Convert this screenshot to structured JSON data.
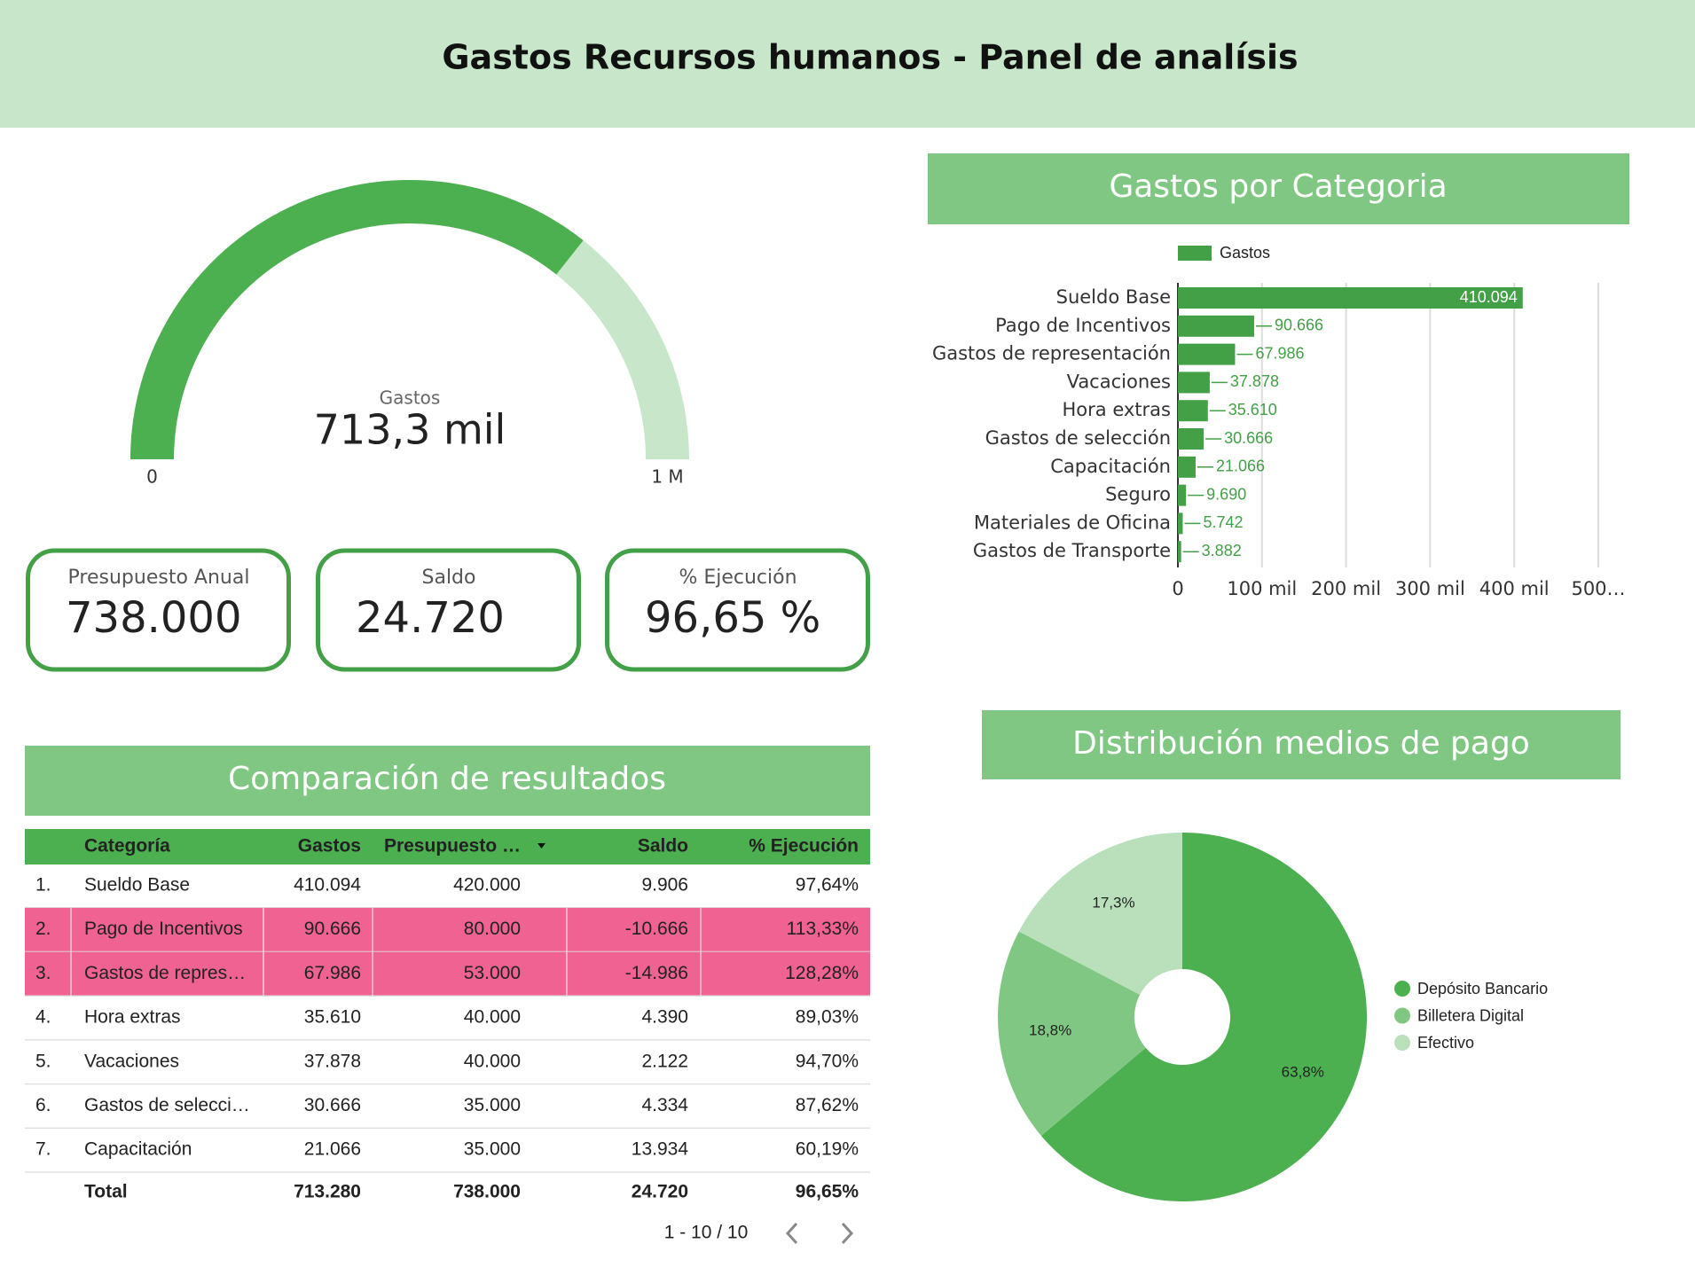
{
  "header": {
    "title": "Gastos Recursos humanos - Panel de analísis"
  },
  "chart_data": [
    {
      "type": "gauge",
      "label": "Gastos",
      "value": 713280,
      "value_label": "713,3 mil",
      "color": "#4caf50",
      "track_color": "#c8e6c9",
      "ylim": [
        0,
        1000000
      ],
      "yticks": [
        0,
        {
          "value": 1000000,
          "label": "1 M"
        }
      ]
    },
    {
      "type": "bar",
      "orientation": "horizontal",
      "title": "Gastos por Categoria",
      "categories": [
        "Sueldo Base",
        "Pago de Incentivos",
        "Gastos de representación",
        "Vacaciones",
        "Hora extras",
        "Gastos de selección",
        "Capacitación",
        "Seguro",
        "Materiales de Oficina",
        "Gastos de Transporte"
      ],
      "series": [
        {
          "name": "Gastos",
          "color": "#43a047",
          "values": [
            410094,
            90666,
            67986,
            37878,
            35610,
            30666,
            21066,
            9690,
            5742,
            3882
          ],
          "value_labels": [
            "410.094",
            "90.666",
            "67.986",
            "37.878",
            "35.610",
            "30.666",
            "21.066",
            "9.690",
            "5.742",
            "3.882"
          ]
        }
      ],
      "xlim": [
        0,
        500000
      ],
      "xticks": [
        0,
        {
          "value": 100000,
          "label": "100 mil"
        },
        {
          "value": 200000,
          "label": "200 mil"
        },
        {
          "value": 300000,
          "label": "300 mil"
        },
        {
          "value": 400000,
          "label": "400 mil"
        },
        {
          "value": 500000,
          "label": "500…"
        }
      ],
      "grid": true,
      "legend": "top"
    },
    {
      "type": "pie",
      "title": "Distribución medios de pago",
      "donut": true,
      "legend": "right",
      "categories": [
        "Depósito Bancario",
        "Billetera Digital",
        "Efectivo"
      ],
      "values": [
        63.8,
        18.8,
        17.3
      ],
      "value_labels": [
        "63,8%",
        "18,8%",
        "17,3%"
      ],
      "colors": [
        "#4caf50",
        "#81c784",
        "#b9e0bb"
      ]
    }
  ],
  "kpis": [
    {
      "label": "Presupuesto Anual",
      "value": "738.000"
    },
    {
      "label": "Saldo",
      "value": "24.720"
    },
    {
      "label": "% Ejecución",
      "value": "96,65 %"
    }
  ],
  "table": {
    "title": "Comparación de resultados",
    "columns": [
      "Categoría",
      "Gastos",
      "Presupuesto …",
      "Saldo",
      "% Ejecución"
    ],
    "rows": [
      {
        "index": "1.",
        "cells": [
          "Sueldo Base",
          "410.094",
          "420.000",
          "9.906",
          "97,64%"
        ],
        "highlight": false
      },
      {
        "index": "2.",
        "cells": [
          "Pago de Incentivos",
          "90.666",
          "80.000",
          "-10.666",
          "113,33%"
        ],
        "highlight": true
      },
      {
        "index": "3.",
        "cells": [
          "Gastos de repres…",
          "67.986",
          "53.000",
          "-14.986",
          "128,28%"
        ],
        "highlight": true
      },
      {
        "index": "4.",
        "cells": [
          "Hora extras",
          "35.610",
          "40.000",
          "4.390",
          "89,03%"
        ],
        "highlight": false
      },
      {
        "index": "5.",
        "cells": [
          "Vacaciones",
          "37.878",
          "40.000",
          "2.122",
          "94,70%"
        ],
        "highlight": false
      },
      {
        "index": "6.",
        "cells": [
          "Gastos de selecci…",
          "30.666",
          "35.000",
          "4.334",
          "87,62%"
        ],
        "highlight": false
      },
      {
        "index": "7.",
        "cells": [
          "Capacitación",
          "21.066",
          "35.000",
          "13.934",
          "60,19%"
        ],
        "highlight": false
      }
    ],
    "total": {
      "label": "Total",
      "cells": [
        "713.280",
        "738.000",
        "24.720",
        "96,65%"
      ]
    },
    "pagination": "1 - 10 / 10"
  }
}
